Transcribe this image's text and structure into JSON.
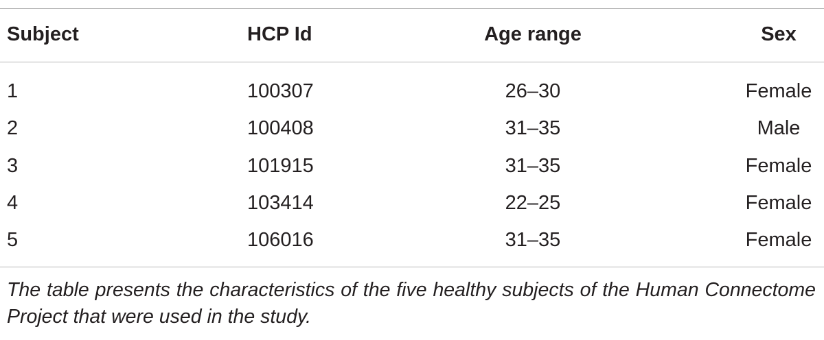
{
  "table": {
    "header": [
      "Subject",
      "HCP Id",
      "Age range",
      "Sex"
    ],
    "rows": [
      [
        "1",
        "100307",
        "26–30",
        "Female"
      ],
      [
        "2",
        "100408",
        "31–35",
        "Male"
      ],
      [
        "3",
        "101915",
        "31–35",
        "Female"
      ],
      [
        "4",
        "103414",
        "22–25",
        "Female"
      ],
      [
        "5",
        "106016",
        "31–35",
        "Female"
      ]
    ],
    "caption": "The table presents the characteristics of the five healthy subjects of the Human Connectome Project that were used in the study."
  }
}
